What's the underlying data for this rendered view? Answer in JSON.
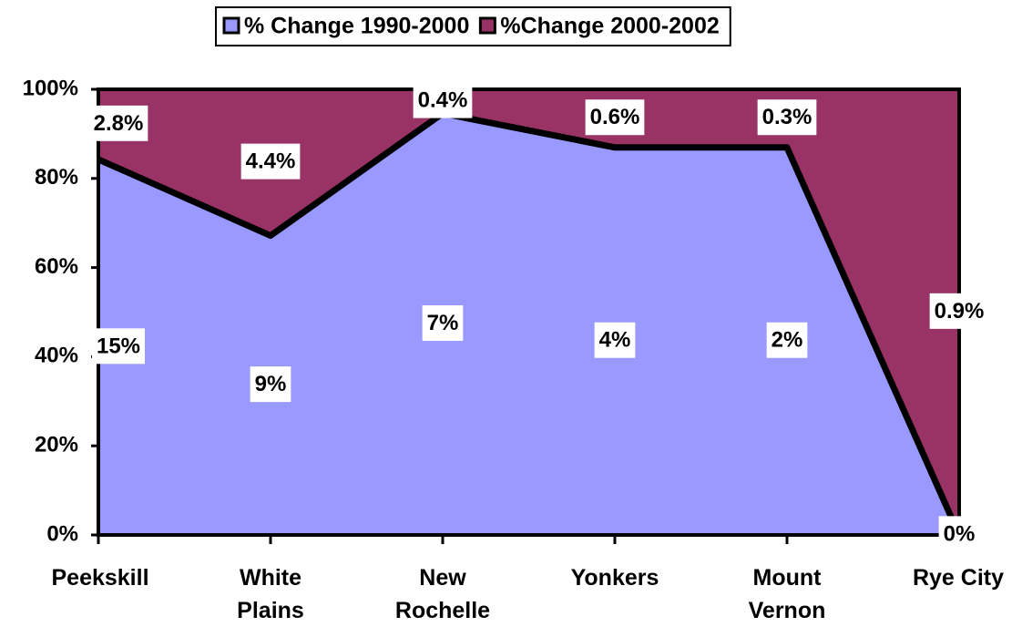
{
  "chart_data": {
    "type": "area",
    "stacking": "percent",
    "categories": [
      "Peekskill",
      "White\nPlains",
      "New\nRochelle",
      "Yonkers",
      "Mount\nVernon",
      "Rye City"
    ],
    "series": [
      {
        "name": "% Change 1990-2000",
        "color": "#9999ff",
        "values": [
          15,
          9,
          7,
          4,
          2,
          0
        ],
        "value_labels": [
          "15%",
          "9%",
          "7%",
          "4%",
          "2%",
          "0%"
        ]
      },
      {
        "name": "%Change 2000-2002",
        "color": "#993366",
        "values": [
          2.8,
          4.4,
          0.4,
          0.6,
          0.3,
          0.9
        ],
        "value_labels": [
          "2.8%",
          "4.4%",
          "0.4%",
          "0.6%",
          "0.3%",
          "0.9%"
        ]
      }
    ],
    "ylim": [
      0,
      100
    ],
    "yticks": [
      {
        "value": 0,
        "label": "0%"
      },
      {
        "value": 20,
        "label": "20%"
      },
      {
        "value": 40,
        "label": "40%"
      },
      {
        "value": 60,
        "label": "60%"
      },
      {
        "value": 80,
        "label": "80%"
      },
      {
        "value": 100,
        "label": "100%"
      }
    ],
    "legend": "top"
  }
}
